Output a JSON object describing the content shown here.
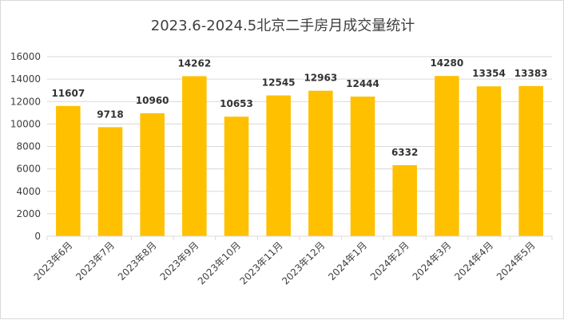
{
  "chart_data": {
    "type": "bar",
    "title": "2023.6-2024.5北京二手房月成交量统计",
    "xlabel": "",
    "ylabel": "",
    "categories": [
      "2023年6月",
      "2023年7月",
      "2023年8月",
      "2023年9月",
      "2023年10月",
      "2023年11月",
      "2023年12月",
      "2024年1月",
      "2024年2月",
      "2024年3月",
      "2024年4月",
      "2024年5月"
    ],
    "values": [
      11607,
      9718,
      10960,
      14262,
      10653,
      12545,
      12963,
      12444,
      6332,
      14280,
      13354,
      13383
    ],
    "ylim": [
      0,
      16000
    ],
    "yticks": [
      0,
      2000,
      4000,
      6000,
      8000,
      10000,
      12000,
      14000,
      16000
    ],
    "grid": true,
    "legend": "none",
    "bar_color": "#FFC000",
    "grid_color": "#d9d9d9"
  }
}
